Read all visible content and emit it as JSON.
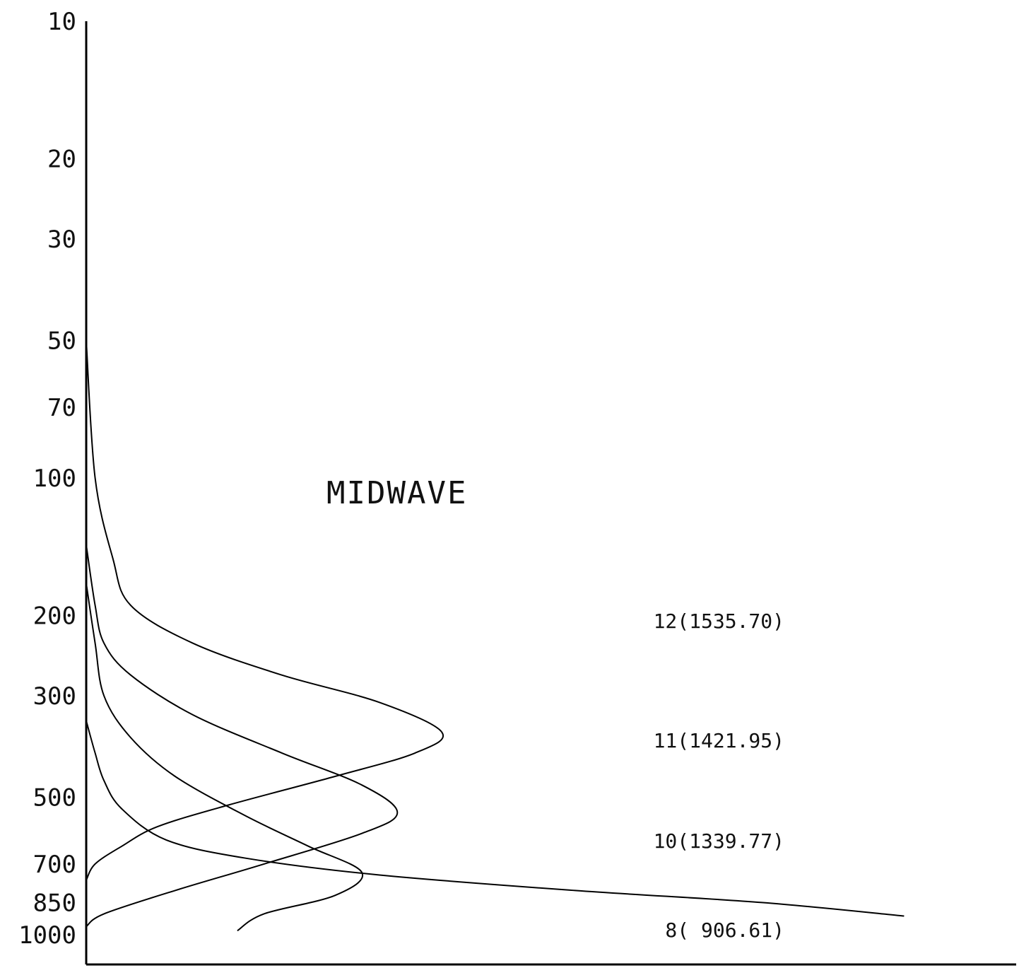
{
  "chart_data": {
    "type": "line",
    "title": "MIDWAVE",
    "xlabel": "",
    "ylabel": "",
    "y_scale": "log",
    "y_inverted": true,
    "ylim": [
      10,
      1000
    ],
    "xlim": [
      0,
      1
    ],
    "grid": false,
    "y_ticks": [
      "10",
      "20",
      "30",
      "50",
      "70",
      "100",
      "200",
      "300",
      "500",
      "700",
      "850",
      "1000"
    ],
    "y_tick_values": [
      10,
      20,
      30,
      50,
      70,
      100,
      200,
      300,
      500,
      700,
      850,
      1000
    ],
    "series": [
      {
        "name": "12(1535.70)",
        "points": [
          [
            0.0,
            50
          ],
          [
            0.01,
            100
          ],
          [
            0.03,
            150
          ],
          [
            0.05,
            190
          ],
          [
            0.12,
            230
          ],
          [
            0.22,
            270
          ],
          [
            0.33,
            310
          ],
          [
            0.4,
            360
          ],
          [
            0.37,
            400
          ],
          [
            0.28,
            450
          ],
          [
            0.16,
            520
          ],
          [
            0.08,
            580
          ],
          [
            0.04,
            640
          ],
          [
            0.01,
            700
          ],
          [
            0.0,
            760
          ]
        ]
      },
      {
        "name": "11(1421.95)",
        "points": [
          [
            0.0,
            140
          ],
          [
            0.01,
            190
          ],
          [
            0.02,
            230
          ],
          [
            0.05,
            270
          ],
          [
            0.12,
            330
          ],
          [
            0.22,
            400
          ],
          [
            0.31,
            470
          ],
          [
            0.35,
            540
          ],
          [
            0.31,
            600
          ],
          [
            0.2,
            700
          ],
          [
            0.1,
            800
          ],
          [
            0.02,
            900
          ],
          [
            0.0,
            960
          ]
        ]
      },
      {
        "name": "10(1339.77)",
        "points": [
          [
            0.0,
            170
          ],
          [
            0.01,
            230
          ],
          [
            0.02,
            300
          ],
          [
            0.05,
            370
          ],
          [
            0.1,
            450
          ],
          [
            0.18,
            550
          ],
          [
            0.25,
            640
          ],
          [
            0.31,
            730
          ],
          [
            0.28,
            820
          ],
          [
            0.2,
            900
          ],
          [
            0.17,
            980
          ]
        ]
      },
      {
        "name": "8( 906.61)",
        "points": [
          [
            0.0,
            340
          ],
          [
            0.01,
            400
          ],
          [
            0.02,
            460
          ],
          [
            0.04,
            530
          ],
          [
            0.09,
            620
          ],
          [
            0.18,
            680
          ],
          [
            0.33,
            740
          ],
          [
            0.55,
            800
          ],
          [
            0.76,
            850
          ],
          [
            0.92,
            910
          ]
        ]
      }
    ],
    "series_labels": [
      "12(1535.70)",
      "11(1421.95)",
      "10(1339.77)",
      "8( 906.61)"
    ]
  }
}
